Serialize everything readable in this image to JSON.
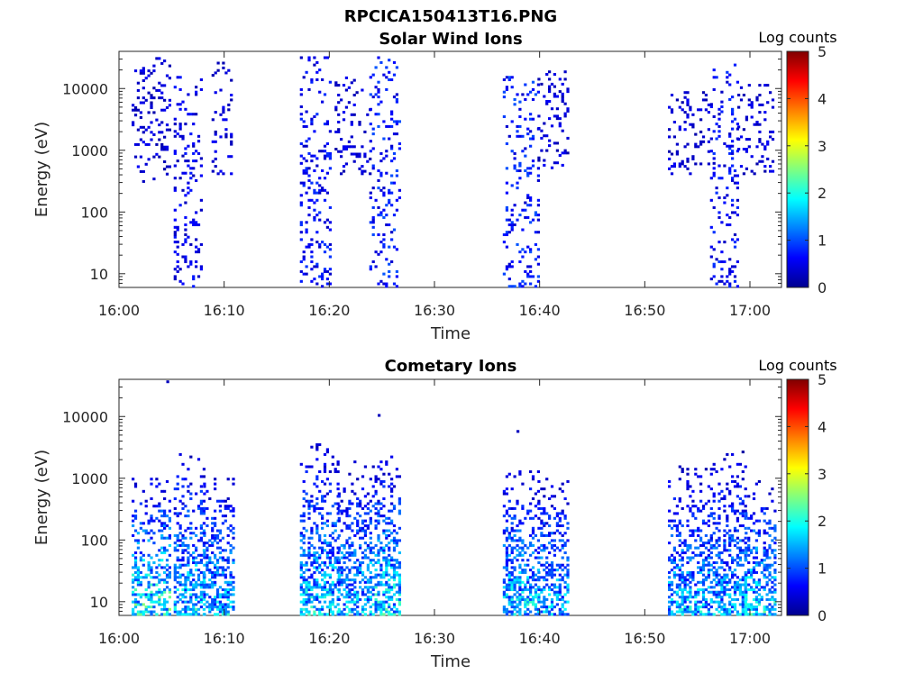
{
  "figure_title": "RPCICA150413T16.PNG",
  "colors": {
    "low": "#00008f",
    "mid": "#00ffff",
    "high": "#800000",
    "axes": "#262626"
  },
  "chart_data": [
    {
      "type": "heatmap",
      "title": "Solar Wind Ions",
      "xlabel": "Time",
      "ylabel": "Energy (eV)",
      "colorbar_label": "Log counts",
      "x_ticks": [
        "16:00",
        "16:10",
        "16:20",
        "16:30",
        "16:40",
        "16:50",
        "17:00"
      ],
      "y_ticks": [
        "10",
        "100",
        "1000",
        "10000"
      ],
      "y_scale": "log",
      "y_range_eV": [
        6,
        40000
      ],
      "x_range_min": [
        0,
        63
      ],
      "colorbar_ticks": [
        "0",
        "1",
        "2",
        "3",
        "4",
        "5"
      ],
      "clim": [
        0,
        5
      ],
      "bursts": [
        {
          "t_start": 1.2,
          "t_end": 4.8,
          "e_min": 300,
          "e_max": 30000,
          "level": 0.4,
          "mode": "scatter"
        },
        {
          "t_start": 5.2,
          "t_end": 7.8,
          "e_min": 6,
          "e_max": 15000,
          "level": 0.5,
          "mode": "scatter"
        },
        {
          "t_start": 8.8,
          "t_end": 10.8,
          "e_min": 400,
          "e_max": 25000,
          "level": 0.4,
          "mode": "scatter"
        },
        {
          "t_start": 17.2,
          "t_end": 20.2,
          "e_min": 6,
          "e_max": 35000,
          "level": 0.6,
          "mode": "scatter"
        },
        {
          "t_start": 20.5,
          "t_end": 23.8,
          "e_min": 400,
          "e_max": 15000,
          "level": 0.4,
          "mode": "scatter"
        },
        {
          "t_start": 23.8,
          "t_end": 26.8,
          "e_min": 6,
          "e_max": 35000,
          "level": 0.7,
          "mode": "scatter"
        },
        {
          "t_start": 36.5,
          "t_end": 39.8,
          "e_min": 6,
          "e_max": 15000,
          "level": 0.7,
          "mode": "scatter"
        },
        {
          "t_start": 39.8,
          "t_end": 42.8,
          "e_min": 500,
          "e_max": 20000,
          "level": 0.4,
          "mode": "scatter"
        },
        {
          "t_start": 52.2,
          "t_end": 56.2,
          "e_min": 400,
          "e_max": 10000,
          "level": 0.4,
          "mode": "scatter"
        },
        {
          "t_start": 56.2,
          "t_end": 58.8,
          "e_min": 6,
          "e_max": 25000,
          "level": 0.6,
          "mode": "scatter"
        },
        {
          "t_start": 58.8,
          "t_end": 62.2,
          "e_min": 400,
          "e_max": 12000,
          "level": 0.4,
          "mode": "scatter"
        }
      ]
    },
    {
      "type": "heatmap",
      "title": "Cometary Ions",
      "xlabel": "Time",
      "ylabel": "Energy (eV)",
      "colorbar_label": "Log counts",
      "x_ticks": [
        "16:00",
        "16:10",
        "16:20",
        "16:30",
        "16:40",
        "16:50",
        "17:00"
      ],
      "y_ticks": [
        "10",
        "100",
        "1000",
        "10000"
      ],
      "y_scale": "log",
      "y_range_eV": [
        6,
        40000
      ],
      "x_range_min": [
        0,
        63
      ],
      "colorbar_ticks": [
        "0",
        "1",
        "2",
        "3",
        "4",
        "5"
      ],
      "clim": [
        0,
        5
      ],
      "bursts": [
        {
          "t_start": 1.2,
          "t_end": 4.8,
          "e_min": 6,
          "e_max": 1000,
          "level": 1.8,
          "mode": "column"
        },
        {
          "t_start": 5.2,
          "t_end": 8.0,
          "e_min": 6,
          "e_max": 2500,
          "level": 1.5,
          "mode": "column"
        },
        {
          "t_start": 8.0,
          "t_end": 11.0,
          "e_min": 6,
          "e_max": 1300,
          "level": 1.4,
          "mode": "column"
        },
        {
          "t_start": 17.2,
          "t_end": 20.8,
          "e_min": 6,
          "e_max": 3500,
          "level": 1.5,
          "mode": "column"
        },
        {
          "t_start": 20.8,
          "t_end": 23.8,
          "e_min": 6,
          "e_max": 2000,
          "level": 1.4,
          "mode": "column"
        },
        {
          "t_start": 23.8,
          "t_end": 26.8,
          "e_min": 6,
          "e_max": 2200,
          "level": 1.6,
          "mode": "column"
        },
        {
          "t_start": 36.5,
          "t_end": 39.8,
          "e_min": 6,
          "e_max": 1500,
          "level": 1.5,
          "mode": "column"
        },
        {
          "t_start": 39.8,
          "t_end": 42.8,
          "e_min": 6,
          "e_max": 1000,
          "level": 1.4,
          "mode": "column"
        },
        {
          "t_start": 52.2,
          "t_end": 56.2,
          "e_min": 6,
          "e_max": 1500,
          "level": 1.4,
          "mode": "column"
        },
        {
          "t_start": 56.2,
          "t_end": 59.5,
          "e_min": 6,
          "e_max": 3000,
          "level": 1.3,
          "mode": "column"
        },
        {
          "t_start": 59.5,
          "t_end": 62.5,
          "e_min": 6,
          "e_max": 900,
          "level": 1.6,
          "mode": "column"
        }
      ],
      "sparse_points": [
        {
          "t": 4.5,
          "e": 35000,
          "level": 0.3
        },
        {
          "t": 24.6,
          "e": 10000,
          "level": 0.3
        },
        {
          "t": 37.8,
          "e": 5500,
          "level": 0.3
        }
      ]
    }
  ]
}
